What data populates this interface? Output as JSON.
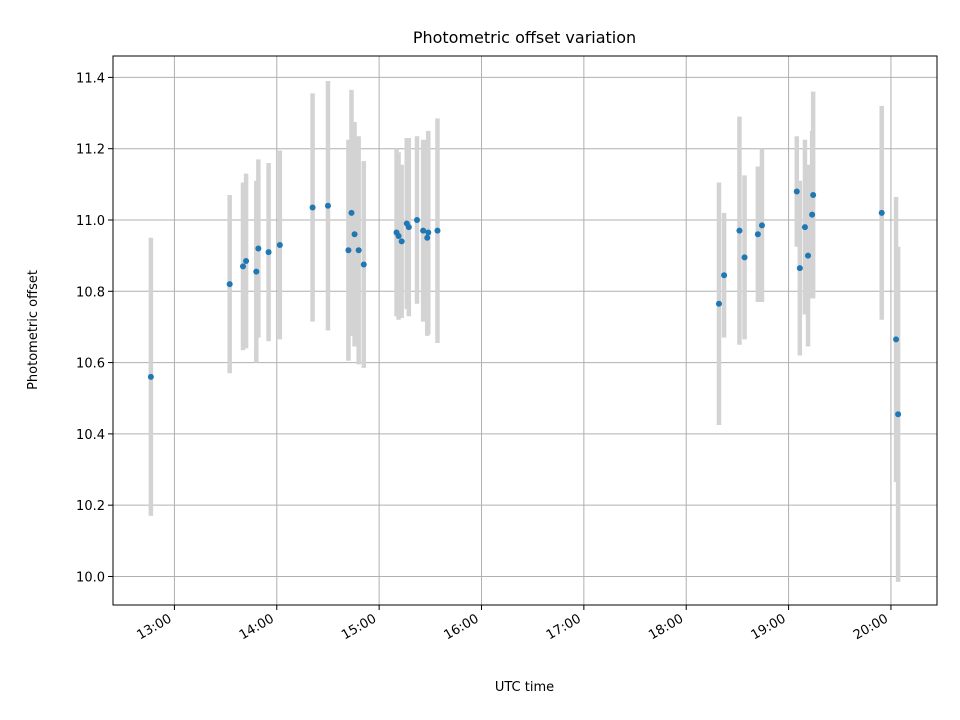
{
  "chart_data": {
    "type": "scatter",
    "title": "Photometric offset variation",
    "xlabel": "UTC time",
    "ylabel": "Photometric offset",
    "x_unit": "hours UTC",
    "xlim": [
      12.4,
      20.45
    ],
    "ylim": [
      9.92,
      11.46
    ],
    "x_ticks": [
      {
        "value": 13,
        "label": "13:00"
      },
      {
        "value": 14,
        "label": "14:00"
      },
      {
        "value": 15,
        "label": "15:00"
      },
      {
        "value": 16,
        "label": "16:00"
      },
      {
        "value": 17,
        "label": "17:00"
      },
      {
        "value": 18,
        "label": "18:00"
      },
      {
        "value": 19,
        "label": "19:00"
      },
      {
        "value": 20,
        "label": "20:00"
      }
    ],
    "y_ticks": [
      {
        "value": 10.0,
        "label": "10.0"
      },
      {
        "value": 10.2,
        "label": "10.2"
      },
      {
        "value": 10.4,
        "label": "10.4"
      },
      {
        "value": 10.6,
        "label": "10.6"
      },
      {
        "value": 10.8,
        "label": "10.8"
      },
      {
        "value": 11.0,
        "label": "11.0"
      },
      {
        "value": 11.2,
        "label": "11.2"
      },
      {
        "value": 11.4,
        "label": "11.4"
      }
    ],
    "grid": true,
    "legend": "none",
    "colors": {
      "point": "#1f77b4",
      "errorbar": "#d3d3d3",
      "grid": "#b0b0b0"
    },
    "points": [
      {
        "x": 12.77,
        "y": 10.56,
        "err": 0.39
      },
      {
        "x": 13.54,
        "y": 10.82,
        "err": 0.25
      },
      {
        "x": 13.67,
        "y": 10.87,
        "err": 0.235
      },
      {
        "x": 13.7,
        "y": 10.885,
        "err": 0.245
      },
      {
        "x": 13.8,
        "y": 10.855,
        "err": 0.255
      },
      {
        "x": 13.82,
        "y": 10.92,
        "err": 0.25
      },
      {
        "x": 13.92,
        "y": 10.91,
        "err": 0.25
      },
      {
        "x": 14.03,
        "y": 10.93,
        "err": 0.265
      },
      {
        "x": 14.35,
        "y": 11.035,
        "err": 0.32
      },
      {
        "x": 14.5,
        "y": 11.04,
        "err": 0.35
      },
      {
        "x": 14.7,
        "y": 10.915,
        "err": 0.31
      },
      {
        "x": 14.73,
        "y": 11.02,
        "err": 0.345
      },
      {
        "x": 14.76,
        "y": 10.96,
        "err": 0.315
      },
      {
        "x": 14.8,
        "y": 10.915,
        "err": 0.32
      },
      {
        "x": 14.85,
        "y": 10.875,
        "err": 0.29
      },
      {
        "x": 15.17,
        "y": 10.965,
        "err": 0.235
      },
      {
        "x": 15.19,
        "y": 10.955,
        "err": 0.235
      },
      {
        "x": 15.22,
        "y": 10.94,
        "err": 0.215
      },
      {
        "x": 15.27,
        "y": 10.99,
        "err": 0.24
      },
      {
        "x": 15.29,
        "y": 10.98,
        "err": 0.25
      },
      {
        "x": 15.37,
        "y": 11.0,
        "err": 0.235
      },
      {
        "x": 15.43,
        "y": 10.97,
        "err": 0.255
      },
      {
        "x": 15.47,
        "y": 10.95,
        "err": 0.275
      },
      {
        "x": 15.48,
        "y": 10.965,
        "err": 0.285
      },
      {
        "x": 15.57,
        "y": 10.97,
        "err": 0.315
      },
      {
        "x": 18.32,
        "y": 10.765,
        "err": 0.34
      },
      {
        "x": 18.37,
        "y": 10.845,
        "err": 0.175
      },
      {
        "x": 18.52,
        "y": 10.97,
        "err": 0.32
      },
      {
        "x": 18.57,
        "y": 10.895,
        "err": 0.23
      },
      {
        "x": 18.7,
        "y": 10.96,
        "err": 0.19
      },
      {
        "x": 18.74,
        "y": 10.985,
        "err": 0.215
      },
      {
        "x": 19.08,
        "y": 11.08,
        "err": 0.155
      },
      {
        "x": 19.11,
        "y": 10.865,
        "err": 0.245
      },
      {
        "x": 19.16,
        "y": 10.98,
        "err": 0.245
      },
      {
        "x": 19.19,
        "y": 10.9,
        "err": 0.255
      },
      {
        "x": 19.23,
        "y": 11.015,
        "err": 0.235
      },
      {
        "x": 19.24,
        "y": 11.07,
        "err": 0.29
      },
      {
        "x": 19.91,
        "y": 11.02,
        "err": 0.3
      },
      {
        "x": 20.05,
        "y": 10.665,
        "err": 0.4
      },
      {
        "x": 20.07,
        "y": 10.455,
        "err": 0.47
      }
    ]
  }
}
